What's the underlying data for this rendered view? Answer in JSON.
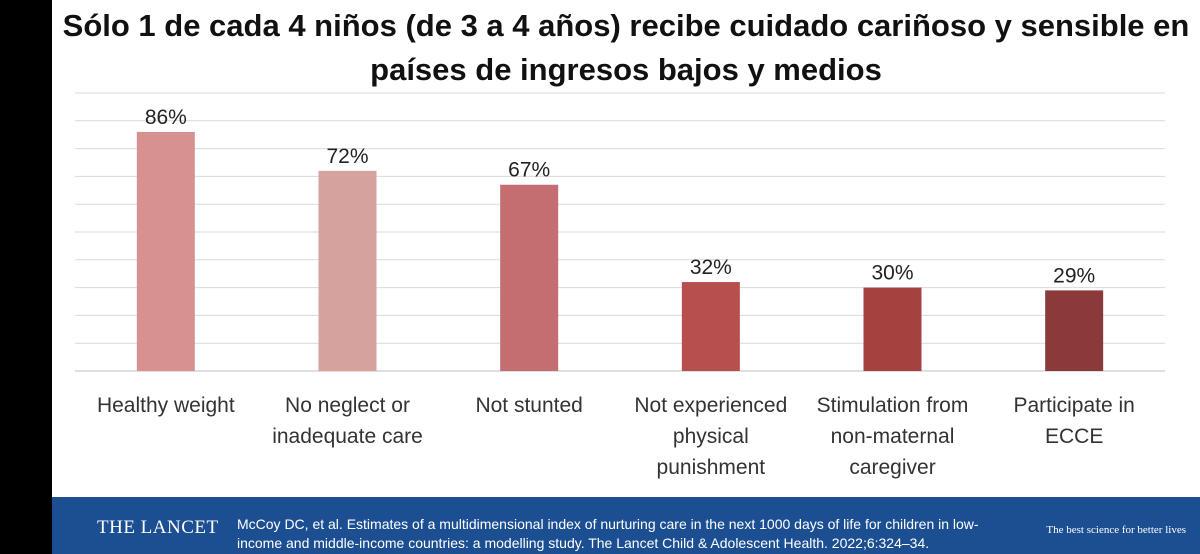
{
  "title": "Sólo 1 de cada 4 niños (de 3 a 4 años) recibe cuidado cariñoso y sensible en países de ingresos bajos y medios",
  "chart_data": {
    "type": "bar",
    "categories": [
      [
        "Healthy weight"
      ],
      [
        "No neglect or",
        "inadequate care"
      ],
      [
        "Not stunted"
      ],
      [
        "Not experienced",
        "physical",
        "punishment"
      ],
      [
        "Stimulation from",
        "non-maternal",
        "caregiver"
      ],
      [
        "Participate in",
        "ECCE"
      ]
    ],
    "values": [
      86,
      72,
      67,
      32,
      30,
      29
    ],
    "value_labels": [
      "86%",
      "72%",
      "67%",
      "32%",
      "30%",
      "29%"
    ],
    "colors": [
      "#d79191",
      "#d6a29d",
      "#c46e72",
      "#b84f4f",
      "#a5423f",
      "#8b3a3c"
    ],
    "ylim": [
      0,
      100
    ],
    "grid": true,
    "legend": "none"
  },
  "footer": {
    "brand": "THE LANCET",
    "citation": "McCoy DC, et al. Estimates of a multidimensional index of nurturing care in the next 1000 days of life for children in low-income and middle-income countries: a modelling study. The Lancet Child & Adolescent Health. 2022;6:324–34.",
    "tagline": "The best science for better lives"
  }
}
